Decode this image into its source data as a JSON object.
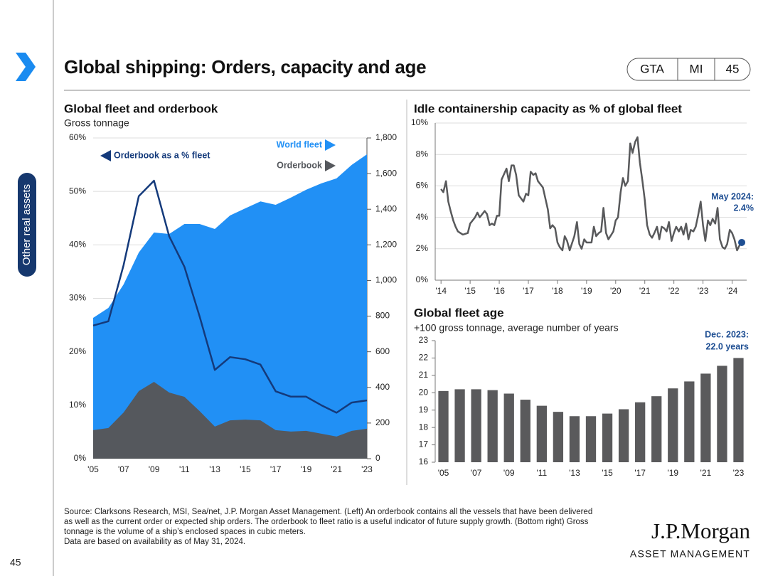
{
  "header": {
    "title": "Global shipping: Orders, capacity and age",
    "tabs": [
      "GTA",
      "MI",
      "45"
    ]
  },
  "sidebar": {
    "section": "Other real assets"
  },
  "page_number": "45",
  "chart_data": [
    {
      "type": "area",
      "title": "Global fleet and orderbook",
      "subtitle": "Gross tonnage",
      "categories": [
        "'05",
        null,
        "'07",
        null,
        "'09",
        null,
        "'11",
        null,
        "'13",
        null,
        "'15",
        null,
        "'17",
        null,
        "'19",
        null,
        "'21",
        null,
        "'23"
      ],
      "series": [
        {
          "name": "World fleet",
          "type": "area",
          "axis": "y2",
          "color": "#2190f5",
          "values": [
            790,
            846,
            978,
            1157,
            1269,
            1261,
            1317,
            1317,
            1289,
            1365,
            1405,
            1444,
            1425,
            1465,
            1509,
            1545,
            1573,
            1649,
            1708
          ]
        },
        {
          "name": "Orderbook",
          "type": "area",
          "axis": "y2",
          "color": "#55585d",
          "values": [
            160,
            172,
            259,
            379,
            431,
            371,
            347,
            267,
            180,
            215,
            219,
            215,
            160,
            152,
            156,
            140,
            124,
            156,
            168
          ]
        },
        {
          "name": "Orderbook as a % fleet",
          "type": "line",
          "axis": "y",
          "color": "#143a7b",
          "values": [
            24.9,
            25.7,
            36.2,
            49.1,
            52.0,
            41.6,
            35.9,
            26.6,
            16.6,
            19.0,
            18.6,
            17.6,
            12.6,
            11.6,
            11.6,
            10.0,
            8.6,
            10.5,
            10.9
          ]
        }
      ],
      "ylim": [
        0,
        60
      ],
      "yticks": [
        {
          "value": 0,
          "label": "0%"
        },
        {
          "value": 10,
          "label": "10%"
        },
        {
          "value": 20,
          "label": "20%"
        },
        {
          "value": 30,
          "label": "30%"
        },
        {
          "value": 40,
          "label": "40%"
        },
        {
          "value": 50,
          "label": "50%"
        },
        {
          "value": 60,
          "label": "60%"
        }
      ],
      "y2lim": [
        0,
        1800
      ],
      "y2ticks": [
        0,
        200,
        400,
        600,
        800,
        {
          "value": 1000,
          "label": "1,000"
        },
        {
          "value": 1200,
          "label": "1,200"
        },
        {
          "value": 1400,
          "label": "1,400"
        },
        {
          "value": 1600,
          "label": "1,600"
        },
        {
          "value": 1800,
          "label": "1,800"
        }
      ],
      "grid": true
    },
    {
      "type": "line",
      "title": "Idle containership capacity as % of global fleet",
      "x": [
        2014.0,
        2014.08,
        2014.17,
        2014.25,
        2014.33,
        2014.42,
        2014.5,
        2014.58,
        2014.75,
        2014.92,
        2015.0,
        2015.17,
        2015.25,
        2015.33,
        2015.5,
        2015.58,
        2015.67,
        2015.75,
        2015.83,
        2015.92,
        2016.0,
        2016.08,
        2016.25,
        2016.33,
        2016.42,
        2016.5,
        2016.58,
        2016.67,
        2016.83,
        2016.92,
        2017.0,
        2017.08,
        2017.17,
        2017.25,
        2017.33,
        2017.5,
        2017.67,
        2017.75,
        2017.83,
        2017.92,
        2018.0,
        2018.08,
        2018.17,
        2018.25,
        2018.33,
        2018.42,
        2018.58,
        2018.67,
        2018.75,
        2018.83,
        2018.92,
        2019.0,
        2019.17,
        2019.25,
        2019.33,
        2019.42,
        2019.5,
        2019.58,
        2019.67,
        2019.75,
        2019.92,
        2020.0,
        2020.08,
        2020.17,
        2020.25,
        2020.33,
        2020.42,
        2020.5,
        2020.58,
        2020.67,
        2020.75,
        2020.83,
        2020.92,
        2021.0,
        2021.08,
        2021.17,
        2021.25,
        2021.33,
        2021.42,
        2021.5,
        2021.58,
        2021.67,
        2021.75,
        2021.83,
        2021.92,
        2022.0,
        2022.08,
        2022.17,
        2022.25,
        2022.33,
        2022.42,
        2022.5,
        2022.58,
        2022.67,
        2022.75,
        2022.83,
        2022.92,
        2023.0,
        2023.08,
        2023.17,
        2023.25,
        2023.33,
        2023.42,
        2023.5,
        2023.58,
        2023.67,
        2023.75,
        2023.83,
        2023.92,
        2024.0,
        2024.08,
        2024.17,
        2024.25,
        2024.33
      ],
      "series": [
        {
          "name": "Idle capacity",
          "color": "#58595b",
          "values": [
            5.8,
            5.6,
            6.3,
            5.0,
            4.4,
            3.8,
            3.4,
            3.1,
            2.9,
            3.0,
            3.6,
            4.0,
            4.3,
            4.0,
            4.4,
            4.2,
            3.5,
            3.6,
            3.5,
            4.1,
            4.1,
            6.4,
            7.1,
            6.3,
            7.3,
            7.3,
            6.7,
            5.4,
            5.0,
            5.5,
            5.4,
            6.9,
            6.7,
            6.8,
            6.3,
            5.9,
            4.5,
            3.3,
            3.5,
            3.3,
            2.4,
            2.1,
            1.9,
            2.8,
            2.5,
            1.9,
            2.8,
            3.7,
            2.3,
            2.0,
            2.6,
            2.4,
            2.4,
            3.4,
            2.8,
            3.0,
            3.1,
            4.6,
            3.0,
            2.6,
            3.1,
            3.8,
            4.0,
            5.6,
            6.5,
            6.0,
            6.3,
            8.7,
            8.1,
            8.8,
            9.1,
            7.5,
            6.3,
            5.1,
            3.5,
            2.9,
            2.7,
            3.0,
            3.4,
            2.6,
            3.4,
            3.3,
            3.1,
            3.7,
            2.5,
            3.0,
            3.4,
            3.1,
            3.4,
            2.9,
            3.6,
            2.6,
            3.2,
            3.1,
            3.4,
            4.1,
            5.0,
            3.5,
            2.5,
            3.8,
            3.5,
            3.9,
            3.6,
            4.6,
            2.6,
            2.1,
            2.0,
            2.3,
            3.2,
            3.0,
            2.6,
            1.9,
            2.2,
            2.4
          ]
        }
      ],
      "marker_color": "#1f4f93",
      "annotation": [
        "May 2024:",
        "2.4%"
      ],
      "xlim": [
        2013.8,
        2024.5
      ],
      "xticks": [
        {
          "value": 2014,
          "label": "'14"
        },
        {
          "value": 2015,
          "label": "'15"
        },
        {
          "value": 2016,
          "label": "'16"
        },
        {
          "value": 2017,
          "label": "'17"
        },
        {
          "value": 2018,
          "label": "'18"
        },
        {
          "value": 2019,
          "label": "'19"
        },
        {
          "value": 2020,
          "label": "'20"
        },
        {
          "value": 2021,
          "label": "'21"
        },
        {
          "value": 2022,
          "label": "'22"
        },
        {
          "value": 2023,
          "label": "'23"
        },
        {
          "value": 2024,
          "label": "'24"
        }
      ],
      "ylim": [
        0,
        10
      ],
      "yticks": [
        {
          "value": 0,
          "label": "0%"
        },
        {
          "value": 2,
          "label": "2%"
        },
        {
          "value": 4,
          "label": "4%"
        },
        {
          "value": 6,
          "label": "6%"
        },
        {
          "value": 8,
          "label": "8%"
        },
        {
          "value": 10,
          "label": "10%"
        }
      ],
      "grid": true
    },
    {
      "type": "bar",
      "title": "Global fleet age",
      "subtitle": "+100 gross tonnage, average number of years",
      "categories": [
        "'05",
        null,
        "'07",
        null,
        "'09",
        null,
        "'11",
        null,
        "'13",
        null,
        "'15",
        null,
        "'17",
        null,
        "'19",
        null,
        "'21",
        null,
        "'23"
      ],
      "values": [
        20.1,
        20.2,
        20.2,
        20.15,
        19.95,
        19.6,
        19.25,
        18.9,
        18.65,
        18.65,
        18.8,
        19.05,
        19.45,
        19.8,
        20.25,
        20.65,
        21.1,
        21.55,
        22.0
      ],
      "color": "#5a5a5c",
      "annotation": [
        "Dec. 2023:",
        "22.0 years"
      ],
      "ylim": [
        16,
        23
      ],
      "yticks": [
        16,
        17,
        18,
        19,
        20,
        21,
        22,
        23
      ],
      "grid": false
    }
  ],
  "footer": {
    "source": [
      "Source: Clarksons Research, MSI, Sea/net, J.P. Morgan Asset Management. (Left) An orderbook contains all the vessels that have been delivered",
      "as well as the current order or expected ship orders. The orderbook to fleet ratio is a useful indicator of future supply growth. (Bottom right) Gross",
      "tonnage is the volume of a ship’s enclosed spaces in cubic meters.",
      "Data are based on availability as of May 31, 2024."
    ]
  },
  "logo": {
    "brand": "J.P.Morgan",
    "division": "ASSET MANAGEMENT"
  }
}
